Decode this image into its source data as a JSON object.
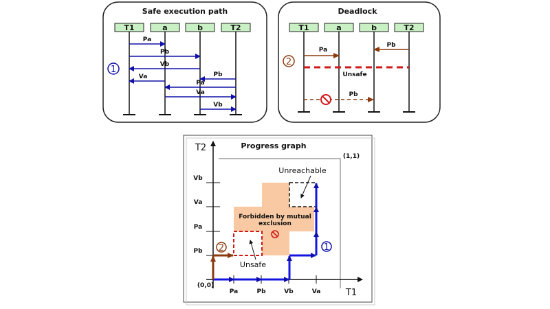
{
  "colors": {
    "header_fill": "#c9f0c4",
    "safe_arrow": "#1010a8",
    "deadlock_arrow": "#8b3a0e",
    "unsafe_line": "#d01818",
    "forbidden_fill": "#f8c9a2",
    "path_blue": "#1414e0",
    "path_brown": "#8b3a0e"
  },
  "safe_panel": {
    "title": "Safe execution path",
    "headers": [
      "T1",
      "a",
      "b",
      "T2"
    ],
    "marker": "1",
    "messages": [
      {
        "label": "Pa",
        "from": "T1",
        "to": "a"
      },
      {
        "label": "Pb",
        "from": "T1",
        "to": "b"
      },
      {
        "label": "Vb",
        "from": "b",
        "to": "T1"
      },
      {
        "label": "Pb",
        "from": "T2",
        "to": "b"
      },
      {
        "label": "Va",
        "from": "a",
        "to": "T1"
      },
      {
        "label": "Pa",
        "from": "T2",
        "to": "a"
      },
      {
        "label": "Va",
        "from": "a",
        "to": "T2"
      },
      {
        "label": "Vb",
        "from": "b",
        "to": "T2"
      }
    ]
  },
  "deadlock_panel": {
    "title": "Deadlock",
    "headers": [
      "T1",
      "a",
      "b",
      "T2"
    ],
    "marker": "2",
    "messages": [
      {
        "label": "Pa",
        "from": "T1",
        "to": "a"
      },
      {
        "label": "Pb",
        "from": "T2",
        "to": "b"
      },
      {
        "label": "Pb",
        "from": "T1",
        "to": "b",
        "blocked": true
      }
    ],
    "unsafe_label": "Unsafe",
    "blocked_icon": "no-entry-icon"
  },
  "progress_graph": {
    "title": "Progress graph",
    "x_axis_label": "T1",
    "y_axis_label": "T2",
    "x_ticks": [
      "Pa",
      "Pb",
      "Vb",
      "Va"
    ],
    "y_ticks": [
      "Pb",
      "Pa",
      "Va",
      "Vb"
    ],
    "origin_label": "(0,0)",
    "end_label": "(1,1)",
    "forbidden_label_line1": "Forbidden by mutual",
    "forbidden_label_line2": "exclusion",
    "unsafe_label": "Unsafe",
    "unreachable_label": "Unreachable",
    "marker_safe": "1",
    "marker_deadlock": "2"
  }
}
